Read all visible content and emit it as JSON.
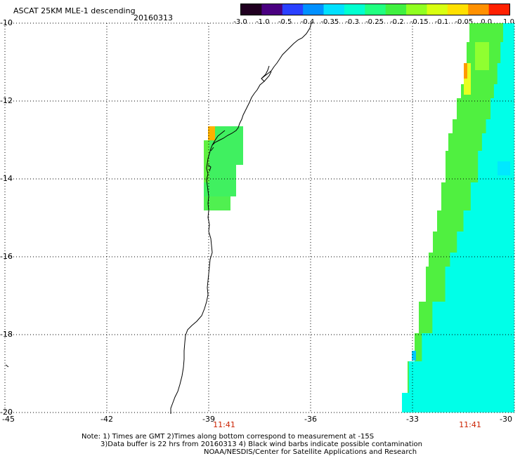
{
  "header": {
    "title": "ASCAT 25KM MLE-1 descending",
    "date": "20160313"
  },
  "colorbar": {
    "labels": [
      "-3.0",
      "-1.0",
      "-0.5",
      "-0.4",
      "-0.35",
      "-0.3",
      "-0.25",
      "-0.2",
      "-0.15",
      "-0.1",
      "-0.05",
      "0.0",
      "1.0"
    ],
    "colors": [
      "#200020",
      "#4a0080",
      "#2a40ff",
      "#0090ff",
      "#00e0ff",
      "#00ffd0",
      "#20ff80",
      "#40f040",
      "#90ff20",
      "#d8ff10",
      "#ffe000",
      "#ff9000",
      "#ff2000"
    ]
  },
  "axes": {
    "lat_labels": [
      "-10",
      "-12",
      "-14",
      "-16",
      "-18",
      "-20"
    ],
    "lon_labels": [
      "-45",
      "-42",
      "-39",
      "-36",
      "-33",
      "-30"
    ],
    "lat_range": [
      -20,
      -10
    ],
    "lon_range": [
      -45,
      -30
    ],
    "grid": "dotted"
  },
  "times": [
    "11:41",
    "11:41"
  ],
  "notes": {
    "line1": "Note: 1) Times are GMT 2)Times along bottom correspond to measurement at -15S",
    "line2": "3)Data buffer is 22 hrs from 20160313 4) Black wind barbs indicate possible contamination",
    "line3": "NOAA/NESDIS/Center for Satellite Applications and Research"
  }
}
